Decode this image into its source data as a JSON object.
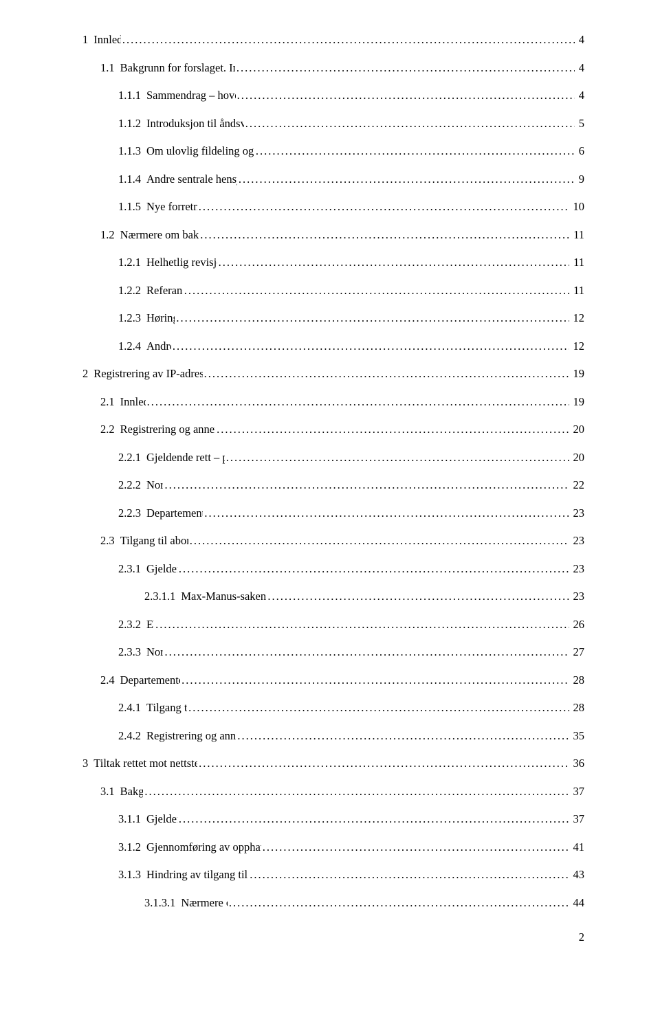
{
  "page_number": "2",
  "font_family": "Times New Roman",
  "text_color": "#000000",
  "background_color": "#ffffff",
  "base_font_size_pt": 12,
  "toc": [
    {
      "level": 0,
      "num": "1",
      "title": "Innledning",
      "page": "4"
    },
    {
      "level": 1,
      "num": "1.1",
      "title": "Bakgrunn for forslaget. Innledning og introduksjon til temaet",
      "page": "4"
    },
    {
      "level": 2,
      "num": "1.1.1",
      "title": "Sammendrag – hovedinnholdet i høringsnotatet",
      "page": "4"
    },
    {
      "level": 2,
      "num": "1.1.2",
      "title": "Introduksjon til åndsverklovens rettigheter og system",
      "page": "5"
    },
    {
      "level": 2,
      "num": "1.1.3",
      "title": "Om ulovlig fildeling og andre opphavsrettskrenkelser på nett",
      "page": "6"
    },
    {
      "level": 2,
      "num": "1.1.4",
      "title": "Andre sentrale hensyn. Avgrensning av forslaget",
      "page": "9"
    },
    {
      "level": 2,
      "num": "1.1.5",
      "title": "Nye forretningsmodeller",
      "page": "10"
    },
    {
      "level": 1,
      "num": "1.2",
      "title": "Nærmere om bakgrunnen for forslaget",
      "page": "11"
    },
    {
      "level": 2,
      "num": "1.2.1",
      "title": "Helhetlig revisjon av åndsverkloven",
      "page": "11"
    },
    {
      "level": 2,
      "num": "1.2.2",
      "title": "Referansegruppe",
      "page": "11"
    },
    {
      "level": 2,
      "num": "1.2.3",
      "title": "Høringsmøte",
      "page": "12"
    },
    {
      "level": 2,
      "num": "1.2.4",
      "title": "Andre land",
      "page": "12"
    },
    {
      "level": 0,
      "num": "2",
      "title": "Registrering av IP-adresser mv. og tilgang til identitet",
      "page": "19"
    },
    {
      "level": 1,
      "num": "2.1",
      "title": "Innledning",
      "page": "19"
    },
    {
      "level": 1,
      "num": "2.2",
      "title": "Registrering og annen behandling av IP-adresser",
      "page": "20"
    },
    {
      "level": 2,
      "num": "2.2.1",
      "title": "Gjeldende rett – personopplysningsloven",
      "page": "20"
    },
    {
      "level": 2,
      "num": "2.2.2",
      "title": "Norden",
      "page": "22"
    },
    {
      "level": 2,
      "num": "2.2.3",
      "title": "Departementets vurderinger",
      "page": "23"
    },
    {
      "level": 1,
      "num": "2.3",
      "title": "Tilgang til abonnentens identitet",
      "page": "23"
    },
    {
      "level": 2,
      "num": "2.3.1",
      "title": "Gjeldende rett",
      "page": "23"
    },
    {
      "level": 3,
      "num": "2.3.1.1",
      "title": "Max-Manus-saken (Rt. 2010 s. 774) og tvisteloven",
      "page": "23"
    },
    {
      "level": 2,
      "num": "2.3.2",
      "title": "EU",
      "page": "26"
    },
    {
      "level": 2,
      "num": "2.3.3",
      "title": "Norden",
      "page": "27"
    },
    {
      "level": 1,
      "num": "2.4",
      "title": "Departementets vurderinger",
      "page": "28"
    },
    {
      "level": 2,
      "num": "2.4.1",
      "title": "Tilgang til identitet",
      "page": "28"
    },
    {
      "level": 2,
      "num": "2.4.2",
      "title": "Registrering og annen behandling av IP-adresser",
      "page": "35"
    },
    {
      "level": 0,
      "num": "3",
      "title": "Tiltak rettet mot nettsted hvor opphavsrett krenkes",
      "page": "36"
    },
    {
      "level": 1,
      "num": "3.1",
      "title": "Bakgrunn",
      "page": "37"
    },
    {
      "level": 2,
      "num": "3.1.1",
      "title": "Gjeldende rett",
      "page": "37"
    },
    {
      "level": 2,
      "num": "3.1.2",
      "title": "Gjennomføring av opphavsrettsdirektivet art. 8.3 i de nordiske land",
      "page": "41"
    },
    {
      "level": 2,
      "num": "3.1.3",
      "title": "Hindring av tilgang til nettsted ved sletting og blokkering",
      "page": "43"
    },
    {
      "level": 3,
      "num": "3.1.3.1",
      "title": "Nærmere om blokkering",
      "page": "44"
    }
  ]
}
